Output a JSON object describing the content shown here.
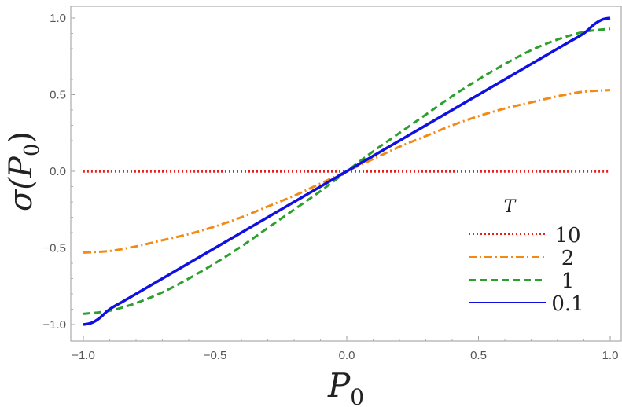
{
  "chart_data": {
    "type": "line",
    "xlabel": "P",
    "xlabel_sub": "0",
    "ylabel_pre": "σ(P",
    "ylabel_sub": "0",
    "ylabel_post": ")",
    "xlim": [
      -1.0,
      1.0
    ],
    "ylim": [
      -1.05,
      1.05
    ],
    "xticks": [
      "-1.0",
      "-0.5",
      "0.0",
      "0.5",
      "1.0"
    ],
    "xtick_values": [
      -1.0,
      -0.5,
      0.0,
      0.5,
      1.0
    ],
    "yticks": [
      "-1.0",
      "-0.5",
      "0.0",
      "0.5",
      "1.0"
    ],
    "ytick_values": [
      -1.0,
      -0.5,
      0.0,
      0.5,
      1.0
    ],
    "legend_title": "T",
    "legend_position": "bottom-right",
    "grid": false,
    "series": [
      {
        "name": "10",
        "color": "#e8201c",
        "style": "dotted",
        "x": [
          -1.0,
          -0.5,
          0.0,
          0.5,
          1.0
        ],
        "y": [
          0.0,
          0.0,
          0.0,
          0.0,
          0.0
        ]
      },
      {
        "name": "2",
        "color": "#f28a14",
        "style": "dashdot",
        "x": [
          -1.0,
          -0.9,
          -0.8,
          -0.7,
          -0.6,
          -0.5,
          -0.4,
          -0.3,
          -0.2,
          -0.1,
          0.0,
          0.1,
          0.2,
          0.3,
          0.4,
          0.5,
          0.6,
          0.7,
          0.8,
          0.9,
          1.0
        ],
        "y": [
          -0.53,
          -0.52,
          -0.49,
          -0.45,
          -0.41,
          -0.36,
          -0.3,
          -0.23,
          -0.16,
          -0.08,
          0.0,
          0.08,
          0.16,
          0.23,
          0.3,
          0.36,
          0.41,
          0.45,
          0.49,
          0.52,
          0.53
        ]
      },
      {
        "name": "1",
        "color": "#2ca02c",
        "style": "dashed",
        "x": [
          -1.0,
          -0.9,
          -0.8,
          -0.7,
          -0.6,
          -0.5,
          -0.4,
          -0.3,
          -0.2,
          -0.1,
          0.0,
          0.1,
          0.2,
          0.3,
          0.4,
          0.5,
          0.6,
          0.7,
          0.8,
          0.9,
          1.0
        ],
        "y": [
          -0.93,
          -0.91,
          -0.86,
          -0.79,
          -0.7,
          -0.6,
          -0.49,
          -0.37,
          -0.25,
          -0.13,
          0.0,
          0.13,
          0.25,
          0.37,
          0.49,
          0.6,
          0.7,
          0.79,
          0.86,
          0.91,
          0.93
        ]
      },
      {
        "name": "0.1",
        "color": "#1010e0",
        "style": "solid",
        "x": [
          -1.0,
          -0.97,
          -0.94,
          -0.9,
          -0.85,
          -0.8,
          -0.7,
          -0.6,
          -0.5,
          -0.4,
          -0.3,
          -0.2,
          -0.1,
          0.0,
          0.1,
          0.2,
          0.3,
          0.4,
          0.5,
          0.6,
          0.7,
          0.8,
          0.85,
          0.9,
          0.94,
          0.97,
          1.0
        ],
        "y": [
          -1.0,
          -0.99,
          -0.96,
          -0.9,
          -0.85,
          -0.8,
          -0.7,
          -0.6,
          -0.5,
          -0.4,
          -0.3,
          -0.2,
          -0.1,
          0.0,
          0.1,
          0.2,
          0.3,
          0.4,
          0.5,
          0.6,
          0.7,
          0.8,
          0.85,
          0.9,
          0.96,
          0.99,
          1.0
        ]
      }
    ]
  }
}
